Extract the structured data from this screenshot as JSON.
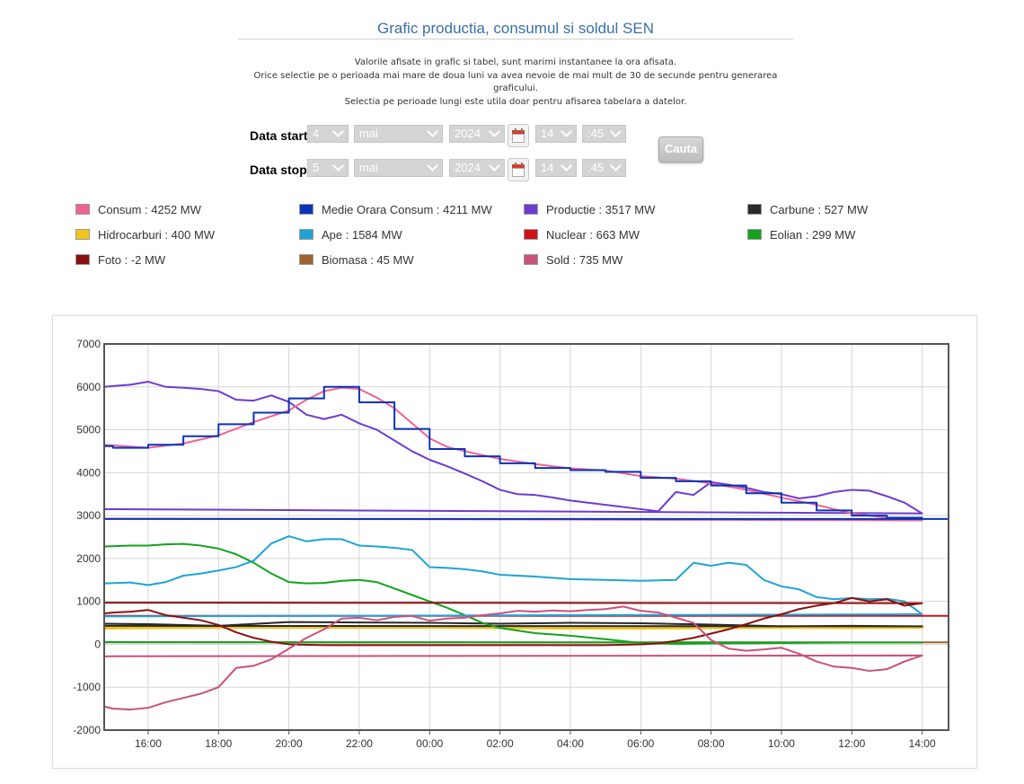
{
  "header": {
    "title": "Grafic productia, consumul si soldul SEN",
    "info_lines": [
      "Valorile afisate in grafic si tabel, sunt marimi instantanee la ora afisata.",
      "Orice selectie pe o perioada mai mare de doua luni va avea nevoie de mai mult de 30 de secunde pentru generarea",
      "graficului.",
      "Selectia pe perioade lungi este utila doar pentru afisarea tabelara a datelor."
    ]
  },
  "filters": {
    "start": {
      "label": "Data start",
      "day": "4",
      "month": "mai",
      "year": "2024",
      "hour": "14",
      "minute": ":45"
    },
    "stop": {
      "label": "Data stop",
      "day": "5",
      "month": "mai",
      "year": "2024",
      "hour": "14",
      "minute": ":45"
    },
    "search_label": "Cauta"
  },
  "legend": [
    {
      "text": "Consum : 4252 MW",
      "color": "#f06292"
    },
    {
      "text": "Medie Orara Consum : 4211 MW",
      "color": "#0a33b8"
    },
    {
      "text": "Productie : 3517 MW",
      "color": "#6d3bd0"
    },
    {
      "text": "Carbune : 527 MW",
      "color": "#2a2a2a"
    },
    {
      "text": "Hidrocarburi : 400 MW",
      "color": "#f0c419"
    },
    {
      "text": "Ape : 1584 MW",
      "color": "#1ea4d4"
    },
    {
      "text": "Nuclear : 663 MW",
      "color": "#d0101a"
    },
    {
      "text": "Eolian : 299 MW",
      "color": "#13a31e"
    },
    {
      "text": "Foto : -2 MW",
      "color": "#8b0f10"
    },
    {
      "text": "Biomasa : 45 MW",
      "color": "#a0642e"
    },
    {
      "text": "Sold : 735 MW",
      "color": "#c9517c"
    }
  ],
  "chart_data": {
    "type": "line",
    "ylim": [
      -2000,
      7000
    ],
    "yticks": [
      -2000,
      -1000,
      0,
      1000,
      2000,
      3000,
      4000,
      5000,
      6000,
      7000
    ],
    "xlim_hours": [
      14.75,
      38.75
    ],
    "xticks": [
      "16:00",
      "18:00",
      "20:00",
      "22:00",
      "00:00",
      "02:00",
      "04:00",
      "06:00",
      "08:00",
      "10:00",
      "12:00",
      "14:00"
    ],
    "grid": true,
    "series": [
      {
        "name": "Consum",
        "color": "#f06292",
        "x": [
          "14:45",
          "16:00",
          "17:00",
          "18:00",
          "19:00",
          "20:00",
          "20:30",
          "21:00",
          "21:30",
          "22:00",
          "22:30",
          "23:00",
          "23:30",
          "00:00",
          "00:30",
          "01:00",
          "02:00",
          "03:00",
          "04:00",
          "05:00",
          "06:00",
          "07:00",
          "08:00",
          "09:00",
          "10:00",
          "11:00",
          "12:00",
          "13:00",
          "14:00",
          "14:45"
        ],
        "values": [
          4650,
          4580,
          4680,
          4870,
          5180,
          5450,
          5700,
          5900,
          5980,
          5950,
          5750,
          5500,
          5150,
          4800,
          4600,
          4500,
          4320,
          4200,
          4100,
          4050,
          3920,
          3860,
          3750,
          3600,
          3420,
          3250,
          3050,
          2950,
          2890,
          2930
        ]
      },
      {
        "name": "Medie Orara Consum",
        "color": "#0a33b8",
        "step": true,
        "x": [
          "14:45",
          "15:00",
          "16:00",
          "17:00",
          "18:00",
          "19:00",
          "20:00",
          "21:00",
          "22:00",
          "23:00",
          "00:00",
          "01:00",
          "02:00",
          "03:00",
          "04:00",
          "05:00",
          "06:00",
          "07:00",
          "08:00",
          "09:00",
          "10:00",
          "11:00",
          "12:00",
          "13:00",
          "14:00",
          "14:45"
        ],
        "values": [
          4620,
          4580,
          4650,
          4850,
          5130,
          5400,
          5730,
          6000,
          5640,
          5020,
          4550,
          4380,
          4220,
          4110,
          4060,
          4020,
          3880,
          3800,
          3700,
          3520,
          3300,
          3120,
          3000,
          2950,
          2920,
          2920
        ]
      },
      {
        "name": "Productie",
        "color": "#6d3bd0",
        "x": [
          "14:45",
          "15:00",
          "15:30",
          "16:00",
          "16:30",
          "17:00",
          "17:30",
          "18:00",
          "18:30",
          "19:00",
          "19:30",
          "20:00",
          "20:30",
          "21:00",
          "21:30",
          "22:00",
          "22:30",
          "23:00",
          "23:30",
          "00:00",
          "00:30",
          "01:00",
          "01:30",
          "02:00",
          "02:30",
          "03:00",
          "03:30",
          "04:00",
          "05:00",
          "06:00",
          "06:30",
          "07:00",
          "07:30",
          "08:00",
          "08:30",
          "09:00",
          "09:30",
          "10:00",
          "10:30",
          "11:00",
          "11:30",
          "12:00",
          "12:30",
          "13:00",
          "13:30",
          "14:00",
          "14:30",
          "14:45"
        ],
        "values": [
          6000,
          6020,
          6050,
          6120,
          6000,
          5980,
          5950,
          5900,
          5700,
          5680,
          5800,
          5650,
          5350,
          5250,
          5350,
          5150,
          5000,
          4750,
          4500,
          4300,
          4150,
          3980,
          3800,
          3600,
          3500,
          3480,
          3420,
          3350,
          3250,
          3150,
          3100,
          3550,
          3480,
          3780,
          3720,
          3650,
          3550,
          3500,
          3400,
          3450,
          3550,
          3600,
          3580,
          3450,
          3300,
          3050,
          3150,
          3150
        ]
      },
      {
        "name": "Carbune",
        "color": "#2a2a2a",
        "x": [
          "14:45",
          "16:00",
          "18:00",
          "20:00",
          "22:00",
          "00:00",
          "02:00",
          "04:00",
          "06:00",
          "08:00",
          "10:00",
          "12:00",
          "14:00",
          "14:45"
        ],
        "values": [
          480,
          470,
          430,
          520,
          510,
          500,
          480,
          500,
          490,
          460,
          420,
          430,
          420,
          430
        ]
      },
      {
        "name": "Hidrocarburi",
        "color": "#f0c419",
        "x": [
          "14:45",
          "16:00",
          "18:00",
          "20:00",
          "22:00",
          "00:00",
          "02:00",
          "04:00",
          "06:00",
          "08:00",
          "10:00",
          "12:00",
          "14:00",
          "14:45"
        ],
        "values": [
          380,
          390,
          400,
          410,
          410,
          400,
          390,
          380,
          380,
          390,
          400,
          390,
          400,
          400
        ]
      },
      {
        "name": "Ape",
        "color": "#1ea4d4",
        "x": [
          "14:45",
          "15:30",
          "16:00",
          "16:30",
          "17:00",
          "17:30",
          "18:00",
          "18:30",
          "19:00",
          "19:30",
          "20:00",
          "20:30",
          "21:00",
          "21:30",
          "22:00",
          "22:30",
          "23:00",
          "23:30",
          "00:00",
          "00:30",
          "01:00",
          "01:30",
          "02:00",
          "03:00",
          "04:00",
          "05:00",
          "06:00",
          "07:00",
          "07:30",
          "08:00",
          "08:30",
          "09:00",
          "09:30",
          "10:00",
          "10:30",
          "11:00",
          "11:30",
          "12:00",
          "12:30",
          "13:00",
          "13:30",
          "14:00",
          "14:45"
        ],
        "values": [
          1420,
          1440,
          1380,
          1450,
          1600,
          1650,
          1720,
          1800,
          1950,
          2350,
          2520,
          2400,
          2450,
          2450,
          2300,
          2280,
          2250,
          2200,
          1800,
          1780,
          1750,
          1700,
          1620,
          1580,
          1520,
          1500,
          1480,
          1500,
          1900,
          1830,
          1900,
          1850,
          1500,
          1350,
          1280,
          1100,
          1050,
          1080,
          1050,
          1060,
          1000,
          700,
          650
        ]
      },
      {
        "name": "Nuclear",
        "color": "#d0101a",
        "x": [
          "14:45",
          "14:45"
        ],
        "values": [
          663,
          663
        ],
        "flat": true
      },
      {
        "name": "Eolian",
        "color": "#13a31e",
        "x": [
          "14:45",
          "15:30",
          "16:00",
          "16:30",
          "17:00",
          "17:30",
          "18:00",
          "18:30",
          "19:00",
          "19:30",
          "20:00",
          "20:30",
          "21:00",
          "21:30",
          "22:00",
          "22:30",
          "23:00",
          "23:30",
          "00:00",
          "00:30",
          "01:00",
          "01:30",
          "02:00",
          "03:00",
          "04:00",
          "05:00",
          "06:00",
          "07:00",
          "08:00",
          "10:00",
          "12:00",
          "14:00",
          "14:45"
        ],
        "values": [
          2280,
          2300,
          2300,
          2330,
          2340,
          2300,
          2230,
          2100,
          1900,
          1650,
          1450,
          1420,
          1430,
          1480,
          1500,
          1450,
          1300,
          1150,
          1000,
          850,
          680,
          500,
          380,
          260,
          200,
          120,
          30,
          10,
          20,
          30,
          40,
          40,
          50
        ]
      },
      {
        "name": "Foto",
        "color": "#8b0f10",
        "x": [
          "14:45",
          "15:00",
          "15:30",
          "16:00",
          "16:30",
          "17:00",
          "17:30",
          "18:00",
          "18:30",
          "19:00",
          "19:30",
          "20:00",
          "21:00",
          "22:00",
          "04:00",
          "05:00",
          "06:00",
          "06:30",
          "07:00",
          "07:30",
          "08:00",
          "08:30",
          "09:00",
          "09:30",
          "10:00",
          "10:30",
          "11:00",
          "11:30",
          "12:00",
          "12:30",
          "13:00",
          "13:30",
          "14:00",
          "14:45"
        ],
        "values": [
          720,
          740,
          760,
          800,
          680,
          620,
          560,
          450,
          280,
          150,
          60,
          0,
          -20,
          -20,
          -20,
          -20,
          0,
          20,
          80,
          150,
          250,
          350,
          470,
          600,
          700,
          820,
          900,
          960,
          1080,
          1000,
          1050,
          900,
          960,
          970
        ]
      },
      {
        "name": "Biomasa",
        "color": "#a0642e",
        "x": [
          "14:45",
          "14:45"
        ],
        "values": [
          45,
          45
        ],
        "flat": true
      },
      {
        "name": "Sold",
        "color": "#c9517c",
        "x": [
          "14:45",
          "15:00",
          "15:30",
          "16:00",
          "16:30",
          "17:00",
          "17:30",
          "18:00",
          "18:30",
          "19:00",
          "19:30",
          "20:00",
          "20:30",
          "21:00",
          "21:30",
          "22:00",
          "22:30",
          "23:00",
          "23:30",
          "00:00",
          "00:30",
          "01:00",
          "01:30",
          "02:00",
          "02:30",
          "03:00",
          "03:30",
          "04:00",
          "04:30",
          "05:00",
          "05:30",
          "06:00",
          "06:30",
          "07:00",
          "07:30",
          "08:00",
          "08:30",
          "09:00",
          "09:30",
          "10:00",
          "10:30",
          "11:00",
          "11:30",
          "12:00",
          "12:30",
          "13:00",
          "13:30",
          "14:00",
          "14:30",
          "14:45"
        ],
        "values": [
          -1450,
          -1500,
          -1520,
          -1480,
          -1350,
          -1250,
          -1150,
          -1000,
          -550,
          -500,
          -350,
          -100,
          150,
          350,
          600,
          620,
          560,
          640,
          660,
          550,
          600,
          620,
          680,
          720,
          780,
          760,
          790,
          770,
          800,
          820,
          880,
          780,
          740,
          620,
          500,
          100,
          -100,
          -150,
          -120,
          -80,
          -220,
          -400,
          -520,
          -550,
          -620,
          -580,
          -400,
          -260,
          -280,
          -250
        ]
      }
    ]
  }
}
